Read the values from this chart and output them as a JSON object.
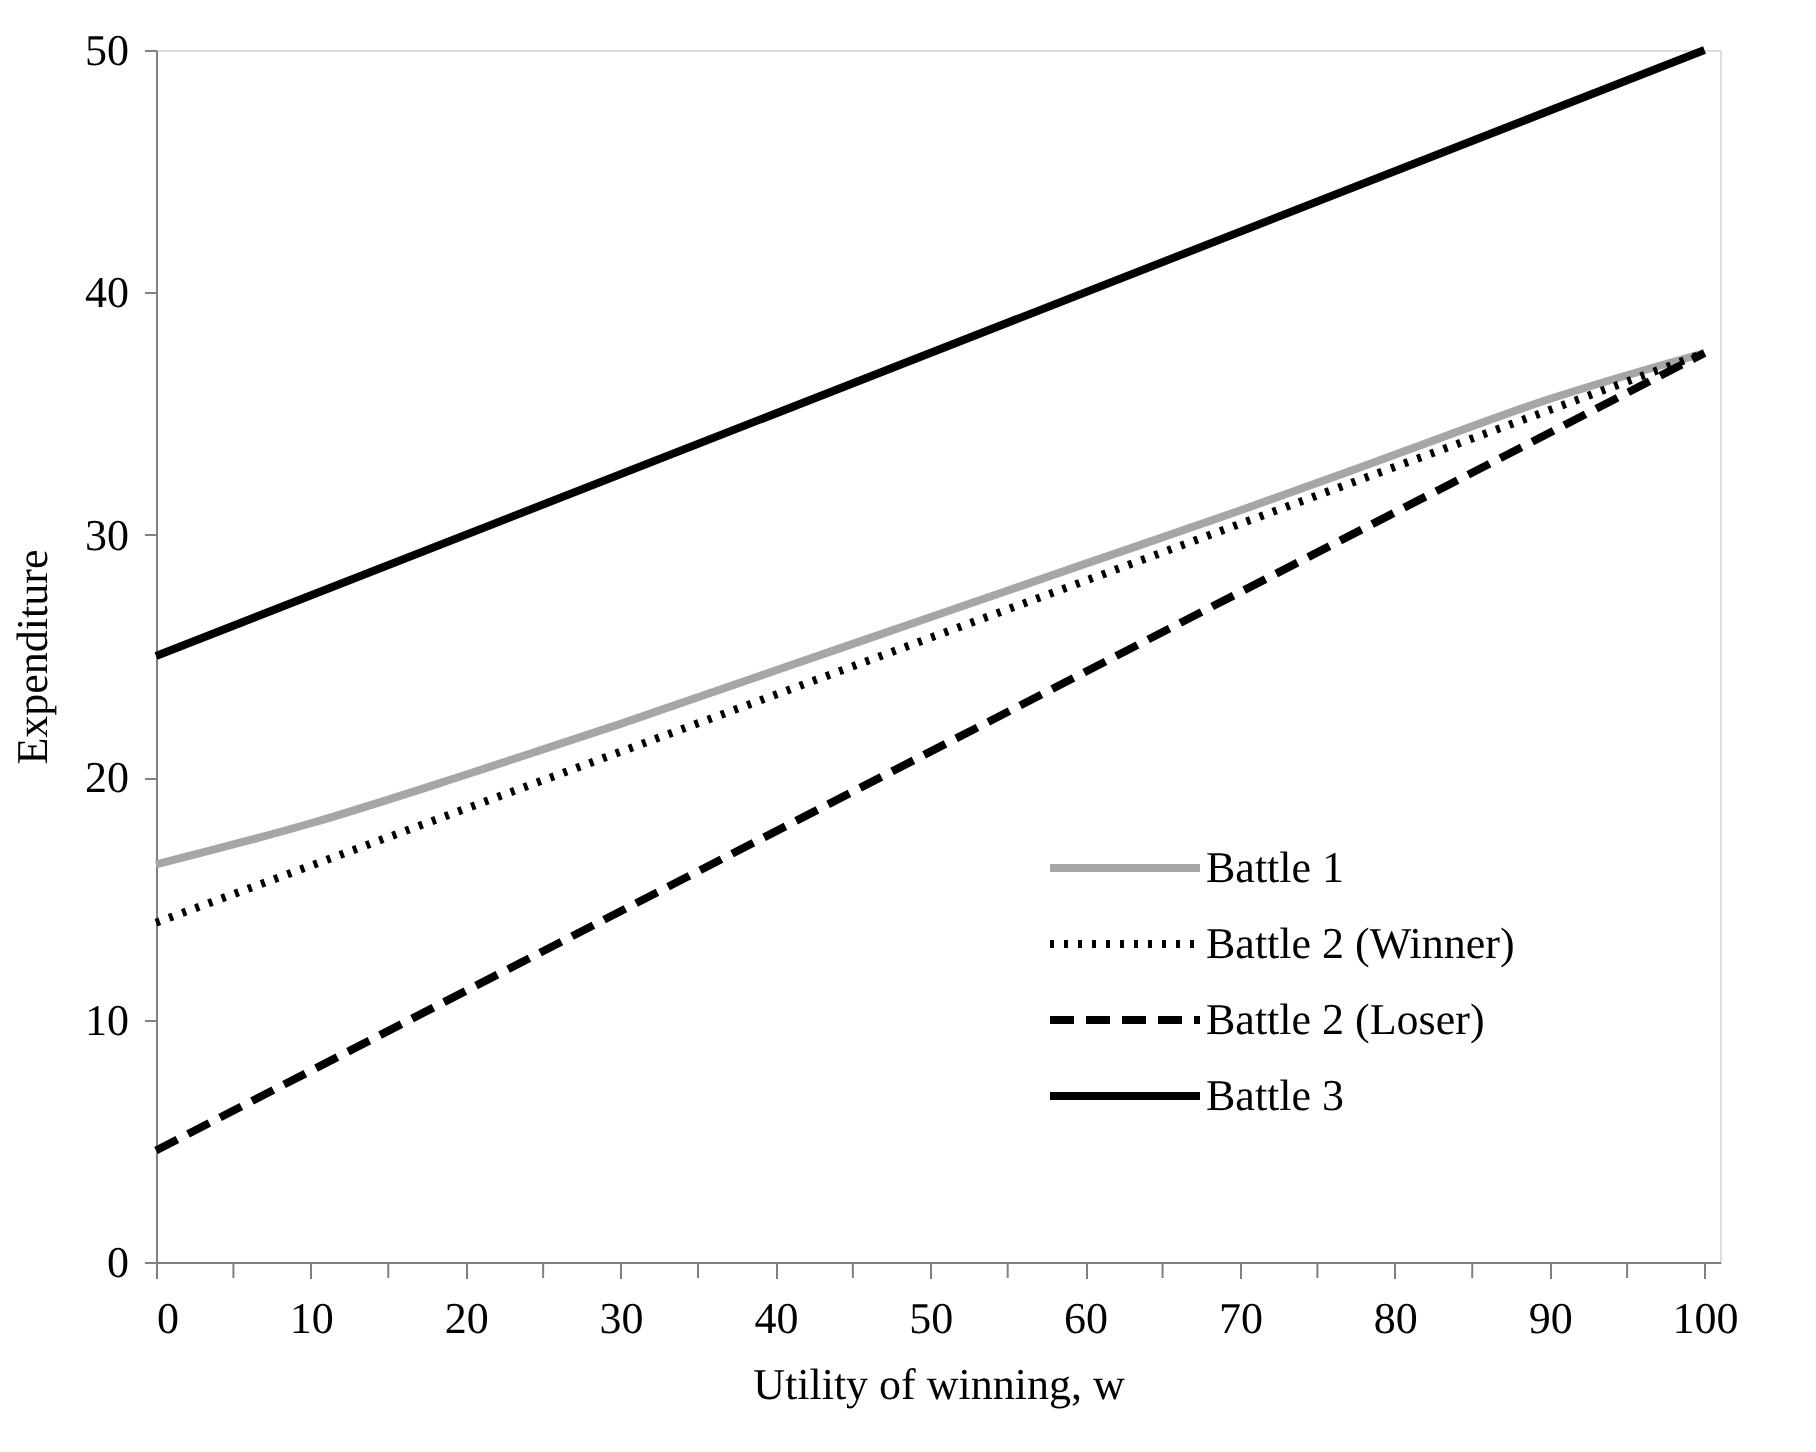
{
  "chart_data": {
    "type": "line",
    "xlabel": "Utility of winning, w",
    "ylabel": "Expenditure",
    "xlim": [
      0,
      101
    ],
    "ylim": [
      0,
      50
    ],
    "xticks": [
      0,
      {
        "value": 5,
        "label": null
      },
      10,
      {
        "value": 15,
        "label": null
      },
      20,
      {
        "value": 25,
        "label": null
      },
      30,
      {
        "value": 35,
        "label": null
      },
      40,
      {
        "value": 45,
        "label": null
      },
      50,
      {
        "value": 55,
        "label": null
      },
      60,
      {
        "value": 65,
        "label": null
      },
      70,
      {
        "value": 75,
        "label": null
      },
      80,
      {
        "value": 85,
        "label": null
      },
      90,
      {
        "value": 95,
        "label": null
      },
      100
    ],
    "yticks": [
      0,
      10,
      20,
      30,
      40,
      50
    ],
    "grid": false,
    "legend": "bottom right",
    "marker": "none",
    "series": [
      {
        "name": "Battle 1",
        "color": "#a6a6a6",
        "line_style": "solid",
        "x": [
          0,
          10,
          20,
          30,
          40,
          50,
          60,
          70,
          80,
          90,
          100
        ],
        "values": [
          16.4,
          18.1,
          20.1,
          22.2,
          24.4,
          26.6,
          28.8,
          31.0,
          33.3,
          35.6,
          37.5
        ]
      },
      {
        "name": "Battle 2 (Winner)",
        "color": "#000000",
        "line_style": "dotted",
        "x": [
          0,
          100
        ],
        "values": [
          14.0,
          37.5
        ]
      },
      {
        "name": "Battle 2 (Loser)",
        "color": "#000000",
        "line_style": "dashed",
        "x": [
          0,
          100
        ],
        "values": [
          4.6,
          37.5
        ]
      },
      {
        "name": "Battle 3",
        "color": "#000000",
        "line_style": "solid",
        "x": [
          0,
          100
        ],
        "values": [
          25.0,
          50.0
        ]
      }
    ]
  }
}
